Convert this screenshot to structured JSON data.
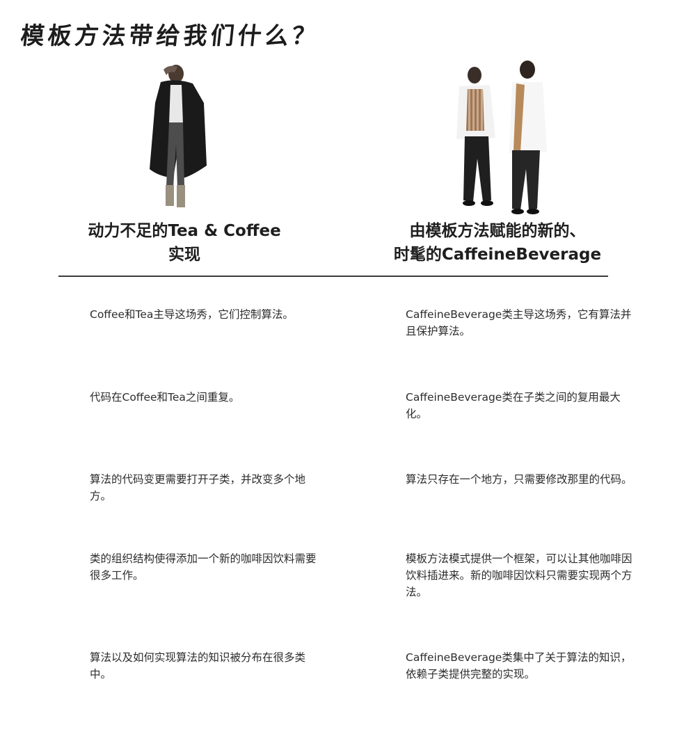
{
  "page": {
    "title": "模板方法带给我们什么？"
  },
  "left_column": {
    "illustration": "man-in-bathrobe",
    "heading_line1": "动力不足的Tea & Coffee",
    "heading_line2": "实现",
    "points": [
      "Coffee和Tea主导这场秀，它们控制算法。",
      "代码在Coffee和Tea之间重复。",
      "算法的代码变更需要打开子类，并改变多个地方。",
      "类的组织结构使得添加一个新的咖啡因饮料需要很多工作。",
      "算法以及如何实现算法的知识被分布在很多类中。"
    ]
  },
  "right_column": {
    "illustration": "two-stylish-men",
    "heading_line1": "由模板方法赋能的新的、",
    "heading_line2": "时髦的CaffeineBeverage",
    "points": [
      "CaffeineBeverage类主导这场秀，它有算法并且保护算法。",
      "CaffeineBeverage类在子类之间的复用最大化。",
      "算法只存在一个地方，只需要修改那里的代码。",
      "模板方法模式提供一个框架，可以让其他咖啡因饮料插进来。新的咖啡因饮料只需要实现两个方法。",
      "CaffeineBeverage类集中了关于算法的知识，依赖子类提供完整的实现。"
    ]
  }
}
